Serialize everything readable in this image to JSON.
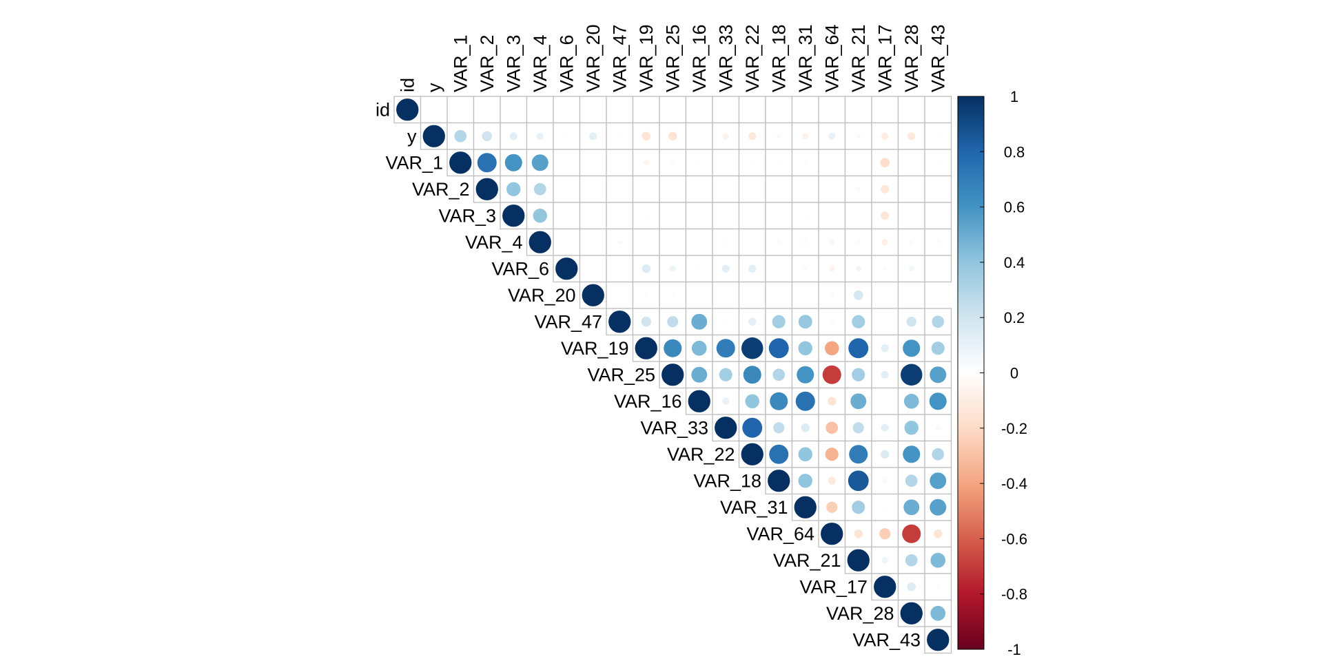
{
  "chart_data": {
    "type": "heatmap",
    "style": "correlation matrix, upper triangle, circle glyphs",
    "variables": [
      "id",
      "y",
      "VAR_1",
      "VAR_2",
      "VAR_3",
      "VAR_4",
      "VAR_6",
      "VAR_20",
      "VAR_47",
      "VAR_19",
      "VAR_25",
      "VAR_16",
      "VAR_33",
      "VAR_22",
      "VAR_18",
      "VAR_31",
      "VAR_64",
      "VAR_21",
      "VAR_17",
      "VAR_28",
      "VAR_43"
    ],
    "matrix_upper": [
      [
        1,
        0,
        0,
        0,
        0,
        0,
        0,
        0,
        0,
        0,
        0,
        0,
        0,
        0,
        0,
        0,
        0,
        0,
        0,
        0,
        0
      ],
      [
        1,
        0.3,
        0.2,
        0.12,
        0.1,
        0.02,
        0.12,
        0.02,
        -0.15,
        -0.15,
        0,
        -0.08,
        -0.12,
        -0.04,
        -0.08,
        0.1,
        -0.04,
        -0.1,
        -0.12,
        -0.02
      ],
      [
        1,
        0.75,
        0.6,
        0.55,
        0.01,
        0.01,
        0.01,
        -0.06,
        -0.03,
        -0.02,
        0.01,
        -0.02,
        -0.02,
        -0.02,
        0.01,
        -0.01,
        -0.18,
        -0.01,
        -0.02
      ],
      [
        1,
        0.4,
        0.3,
        0.01,
        0.01,
        0.01,
        0.01,
        -0.01,
        0.01,
        0.01,
        0.01,
        0.01,
        0.01,
        0.01,
        -0.04,
        -0.14,
        0.01,
        0.01
      ],
      [
        1,
        0.4,
        0.01,
        0.01,
        0.01,
        0.02,
        0.01,
        0.01,
        0.01,
        0.01,
        0.01,
        -0.02,
        0.01,
        -0.01,
        -0.14,
        0.01,
        0.01
      ],
      [
        1,
        0.01,
        0.01,
        0.04,
        0.02,
        0.01,
        0.01,
        0.02,
        0.01,
        -0.03,
        -0.03,
        -0.06,
        -0.03,
        -0.08,
        -0.04,
        -0.03
      ],
      [
        1,
        0.01,
        0.01,
        0.15,
        0.08,
        0.02,
        0.12,
        0.12,
        0.01,
        -0.03,
        -0.06,
        0.06,
        -0.03,
        0.06,
        0.01
      ],
      [
        1,
        0.01,
        0.02,
        0.02,
        0.01,
        0.01,
        0.01,
        0.01,
        0.01,
        0.03,
        0.18,
        0.01,
        0.01
      ],
      [
        1,
        0.2,
        0.25,
        0.5,
        0.02,
        0.12,
        0.35,
        0.38,
        -0.03,
        0.35,
        0,
        0.2,
        0.3
      ],
      [
        1,
        0.65,
        0.45,
        0.7,
        0.95,
        0.8,
        0.4,
        -0.4,
        0.8,
        0.12,
        0.6,
        0.35
      ],
      [
        1,
        0.5,
        0.35,
        0.65,
        0.3,
        0.6,
        -0.7,
        0.35,
        0.12,
        0.95,
        0.55
      ],
      [
        1,
        0.1,
        0.4,
        0.65,
        0.75,
        -0.15,
        0.5,
        0,
        0.45,
        0.6
      ],
      [
        1,
        0.8,
        0.25,
        0.15,
        -0.3,
        0.25,
        0.12,
        0.4,
        0.05
      ],
      [
        1,
        0.75,
        0.4,
        -0.35,
        0.7,
        0.15,
        0.6,
        0.3
      ],
      [
        1,
        0.4,
        -0.12,
        0.85,
        0.05,
        0.3,
        0.55
      ],
      [
        1,
        -0.25,
        0.35,
        0.02,
        0.5,
        0.55
      ],
      [
        1,
        -0.15,
        -0.25,
        -0.7,
        -0.15
      ],
      [
        1,
        0.08,
        0.3,
        0.45
      ],
      [
        1,
        0.15,
        0.02
      ],
      [
        1,
        0.45
      ],
      [
        1
      ]
    ],
    "colorbar": {
      "ticks": [
        "1",
        "0.8",
        "0.6",
        "0.4",
        "0.2",
        "0",
        "-0.2",
        "-0.4",
        "-0.6",
        "-0.8",
        "-1"
      ],
      "range": [
        -1,
        1
      ],
      "colors": [
        "#67001F",
        "#B2182B",
        "#D6604D",
        "#F4A582",
        "#FDDBC7",
        "#FFFFFF",
        "#D1E5F0",
        "#92C5DE",
        "#4393C3",
        "#2166AC",
        "#053061"
      ]
    },
    "grid_color": "#BEBEBE"
  }
}
